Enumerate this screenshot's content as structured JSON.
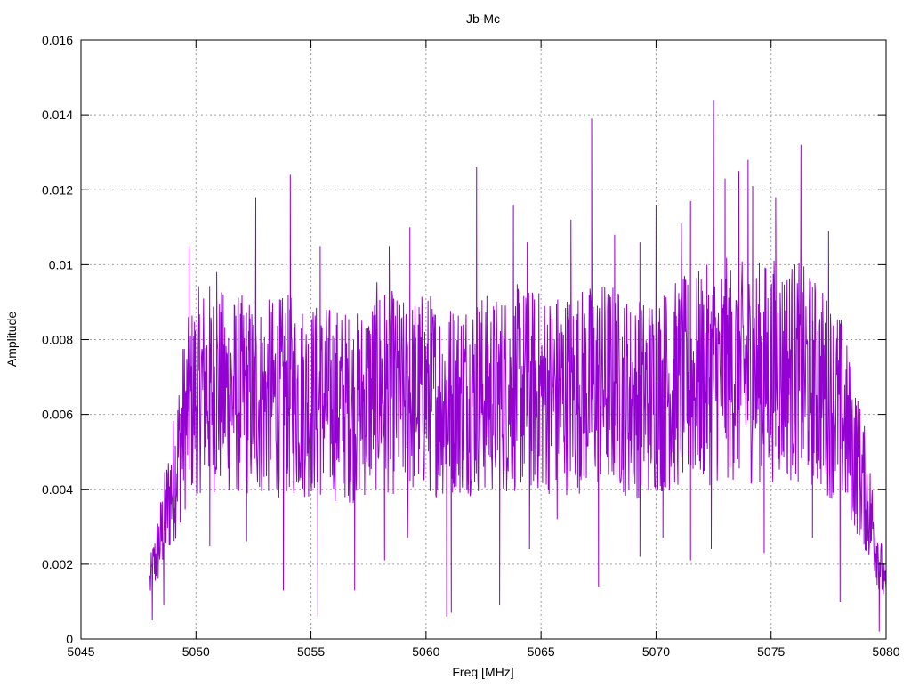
{
  "chart_data": {
    "type": "line",
    "title": "Jb-Mc",
    "xlabel": "Freq [MHz]",
    "ylabel": "Amplitude",
    "xlim": [
      5045,
      5080
    ],
    "ylim": [
      0,
      0.016
    ],
    "x_ticks": [
      5045,
      5050,
      5055,
      5060,
      5065,
      5070,
      5075,
      5080
    ],
    "x_tick_labels": [
      "5045",
      "5050",
      "5055",
      "5060",
      "5065",
      "5070",
      "5075",
      "5080"
    ],
    "y_ticks": [
      0,
      0.002,
      0.004,
      0.006,
      0.008,
      0.01,
      0.012,
      0.014,
      0.016
    ],
    "y_tick_labels": [
      "0",
      "0.002",
      "0.004",
      "0.006",
      "0.008",
      "0.01",
      "0.012",
      "0.014",
      "0.016"
    ],
    "grid": true,
    "grid_style": "dotted",
    "color": "#9400d3",
    "series": [
      {
        "x": [
          5048,
          5048.5,
          5049,
          5049.5,
          5050,
          5050.5,
          5051,
          5052,
          5053,
          5054,
          5055,
          5056,
          5057,
          5058,
          5059,
          5060,
          5061,
          5062,
          5063,
          5064,
          5065,
          5066,
          5067,
          5068,
          5069,
          5070,
          5071,
          5072,
          5073,
          5074,
          5075,
          5076,
          5077,
          5078,
          5078.5,
          5079,
          5079.5,
          5080
        ],
        "y": [
          0.0015,
          0.0028,
          0.0042,
          0.0058,
          0.0066,
          0.0068,
          0.0066,
          0.0065,
          0.0064,
          0.0065,
          0.0064,
          0.0063,
          0.0062,
          0.0068,
          0.0064,
          0.0066,
          0.0064,
          0.0066,
          0.0065,
          0.0067,
          0.0066,
          0.0066,
          0.0067,
          0.0068,
          0.0064,
          0.0066,
          0.0068,
          0.007,
          0.0072,
          0.0071,
          0.0072,
          0.0072,
          0.0068,
          0.0062,
          0.0052,
          0.0042,
          0.0028,
          0.0012
        ]
      },
      {
        "peaks": [
          [
            5049.7,
            0.0105
          ],
          [
            5050.9,
            0.0098
          ],
          [
            5052.6,
            0.0118
          ],
          [
            5054.1,
            0.0124
          ],
          [
            5055.4,
            0.0105
          ],
          [
            5058.4,
            0.0105
          ],
          [
            5059.3,
            0.011
          ],
          [
            5062.2,
            0.0126
          ],
          [
            5063.8,
            0.0116
          ],
          [
            5064.4,
            0.0106
          ],
          [
            5066.3,
            0.0112
          ],
          [
            5067.2,
            0.0139
          ],
          [
            5068.2,
            0.0108
          ],
          [
            5069.3,
            0.0106
          ],
          [
            5070.0,
            0.0116
          ],
          [
            5071.1,
            0.0111
          ],
          [
            5071.5,
            0.0117
          ],
          [
            5072.5,
            0.0144
          ],
          [
            5073.0,
            0.0123
          ],
          [
            5073.6,
            0.0125
          ],
          [
            5074.0,
            0.0128
          ],
          [
            5074.2,
            0.0121
          ],
          [
            5075.2,
            0.0118
          ],
          [
            5076.3,
            0.0132
          ],
          [
            5077.5,
            0.0109
          ]
        ],
        "dips": [
          [
            5048.1,
            0.0005
          ],
          [
            5048.6,
            0.0009
          ],
          [
            5050.6,
            0.0025
          ],
          [
            5052.2,
            0.0026
          ],
          [
            5053.8,
            0.0013
          ],
          [
            5055.3,
            0.0006
          ],
          [
            5056.9,
            0.0013
          ],
          [
            5058.2,
            0.0021
          ],
          [
            5059.2,
            0.0027
          ],
          [
            5060.9,
            0.0006
          ],
          [
            5061.1,
            0.0007
          ],
          [
            5063.2,
            0.0009
          ],
          [
            5064.5,
            0.0024
          ],
          [
            5065.7,
            0.0032
          ],
          [
            5067.5,
            0.0014
          ],
          [
            5069.3,
            0.0022
          ],
          [
            5070.3,
            0.0027
          ],
          [
            5071.5,
            0.0021
          ],
          [
            5072.4,
            0.0024
          ],
          [
            5074.7,
            0.0023
          ],
          [
            5076.8,
            0.0027
          ],
          [
            5078.0,
            0.001
          ],
          [
            5079.7,
            0.0002
          ]
        ]
      }
    ]
  }
}
